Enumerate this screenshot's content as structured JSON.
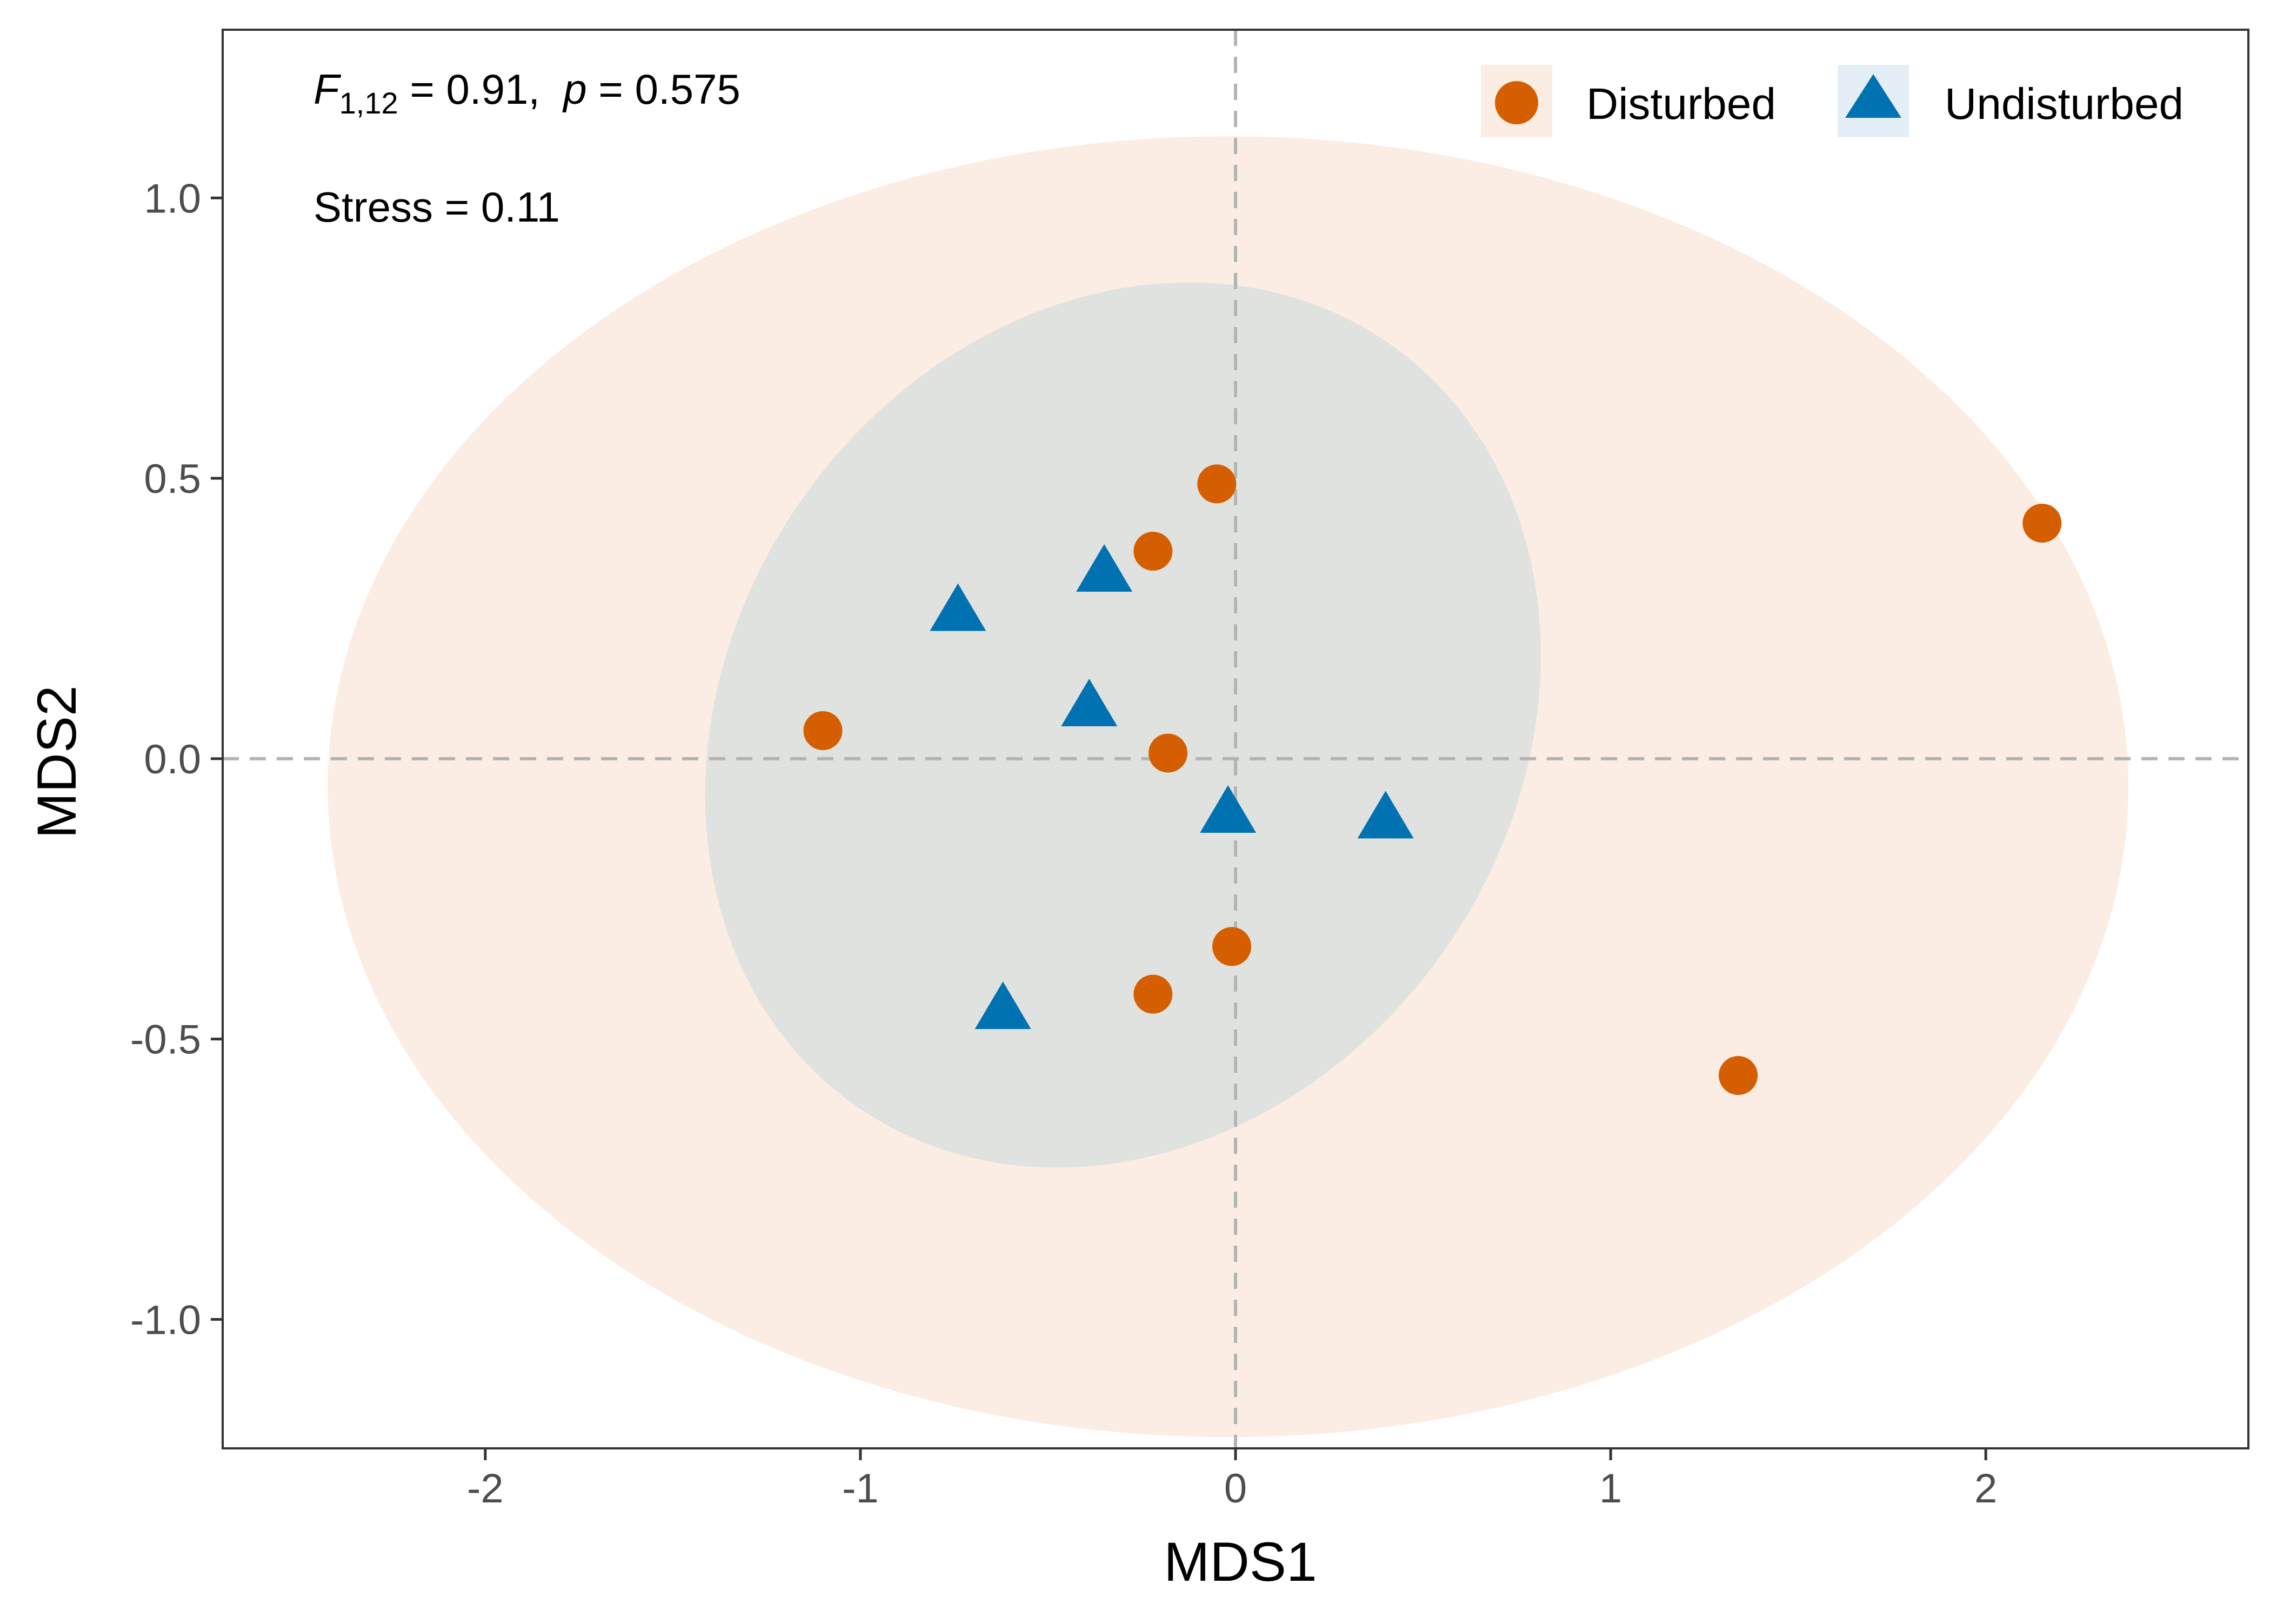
{
  "chart_data": {
    "type": "scatter",
    "xlabel": "MDS1",
    "ylabel": "MDS2",
    "xlim": [
      -2.7,
      2.7
    ],
    "ylim": [
      -1.23,
      1.3
    ],
    "x_ticks": [
      -2,
      -1,
      0,
      1,
      2
    ],
    "x_tick_labels": [
      "-2",
      "-1",
      "0",
      "1",
      "2"
    ],
    "y_ticks": [
      -1.0,
      -0.5,
      0.0,
      0.5,
      1.0
    ],
    "y_tick_labels": [
      "-1.0",
      "-0.5",
      "0.0",
      "0.5",
      "1.0"
    ],
    "grid": false,
    "reference_lines": {
      "x": 0,
      "y": 0,
      "style": "dashed",
      "color": "#b3b3b3"
    },
    "legend": {
      "placement": "top-right"
    },
    "annotations": {
      "f_stat": {
        "italic_letter": "F",
        "subscript": "1,12",
        "value_text": " = 0.91,  ",
        "p_letter": "p",
        "p_text": " = 0.575"
      },
      "stress": "Stress = 0.11"
    },
    "series": [
      {
        "name": "Disturbed",
        "marker": "circle",
        "color": "#D55E00",
        "ellipse": {
          "cx": -0.02,
          "cy": -0.05,
          "rx": 2.4,
          "ry": 1.16,
          "angle_deg": 0,
          "fill": "#FBEDE3"
        },
        "points": [
          {
            "x": -0.05,
            "y": 0.49
          },
          {
            "x": -0.22,
            "y": 0.37
          },
          {
            "x": 2.15,
            "y": 0.42
          },
          {
            "x": -1.1,
            "y": 0.05
          },
          {
            "x": -0.18,
            "y": 0.01
          },
          {
            "x": -0.01,
            "y": -0.335
          },
          {
            "x": -0.22,
            "y": -0.42
          },
          {
            "x": 1.34,
            "y": -0.565
          }
        ]
      },
      {
        "name": "Undisturbed",
        "marker": "triangle",
        "color": "#0072B2",
        "ellipse": {
          "cx": -0.3,
          "cy": 0.06,
          "rx": 1.24,
          "ry": 0.7,
          "angle_deg": -55,
          "fill": "#E0E2DF"
        },
        "points": [
          {
            "x": -0.35,
            "y": 0.33
          },
          {
            "x": -0.74,
            "y": 0.26
          },
          {
            "x": -0.39,
            "y": 0.09
          },
          {
            "x": -0.02,
            "y": -0.1
          },
          {
            "x": 0.4,
            "y": -0.11
          },
          {
            "x": -0.62,
            "y": -0.45
          }
        ]
      }
    ]
  }
}
